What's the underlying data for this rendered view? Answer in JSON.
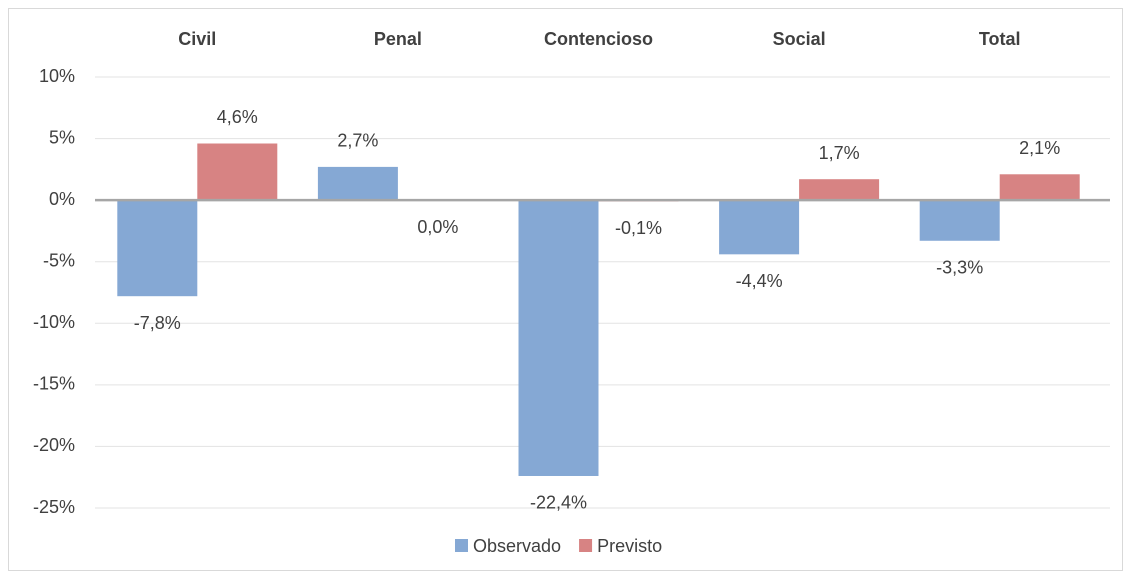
{
  "chart_data": {
    "type": "bar",
    "categories": [
      "Civil",
      "Penal",
      "Contencioso",
      "Social",
      "Total"
    ],
    "series": [
      {
        "name": "Observado",
        "color": "#85a8d4",
        "values": [
          -7.8,
          2.7,
          -22.4,
          -4.4,
          -3.3
        ],
        "value_labels": [
          "-7,8%",
          "2,7%",
          "-22,4%",
          "-4,4%",
          "-3,3%"
        ]
      },
      {
        "name": "Previsto",
        "color": "#d78383",
        "values": [
          4.6,
          0.0,
          -0.1,
          1.7,
          2.1
        ],
        "value_labels": [
          "4,6%",
          "0,0%",
          "-0,1%",
          "1,7%",
          "2,1%"
        ]
      }
    ],
    "ylim": [
      -25,
      10
    ],
    "yticks": [
      {
        "value": 10,
        "label": "10%"
      },
      {
        "value": 5,
        "label": "5%"
      },
      {
        "value": 0,
        "label": "0%"
      },
      {
        "value": -5,
        "label": "-5%"
      },
      {
        "value": -10,
        "label": "-10%"
      },
      {
        "value": -15,
        "label": "-15%"
      },
      {
        "value": -20,
        "label": "-20%"
      },
      {
        "value": -25,
        "label": "-25%"
      }
    ],
    "grid": true,
    "legend": "bottom"
  }
}
